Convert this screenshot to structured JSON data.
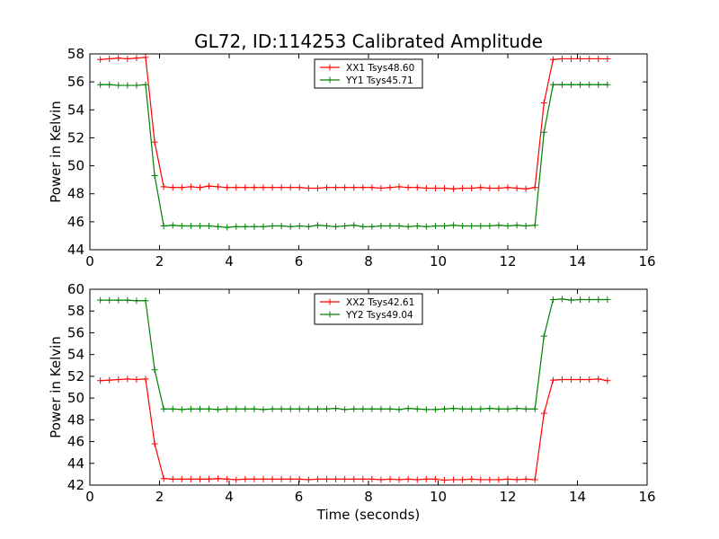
{
  "figure": {
    "title": "GL72, ID:114253 Calibrated Amplitude",
    "xlabel": "Time (seconds)"
  },
  "chart_data": [
    {
      "type": "line",
      "title": "GL72, ID:114253 Calibrated Amplitude",
      "xlabel": "",
      "ylabel": "Power in Kelvin",
      "xlim": [
        0,
        16
      ],
      "ylim": [
        44,
        58
      ],
      "xticks": [
        "0",
        "2",
        "4",
        "6",
        "8",
        "10",
        "12",
        "14",
        "16"
      ],
      "yticks": [
        "44",
        "46",
        "48",
        "50",
        "52",
        "54",
        "56",
        "58"
      ],
      "grid": false,
      "legend_position": "top-center",
      "x": [
        0.3,
        0.56,
        0.82,
        1.08,
        1.34,
        1.6,
        1.86,
        2.12,
        2.38,
        2.64,
        2.9,
        3.16,
        3.42,
        3.68,
        3.94,
        4.2,
        4.46,
        4.72,
        4.98,
        5.24,
        5.5,
        5.76,
        6.02,
        6.28,
        6.54,
        6.8,
        7.06,
        7.32,
        7.58,
        7.84,
        8.1,
        8.36,
        8.62,
        8.88,
        9.14,
        9.4,
        9.66,
        9.92,
        10.18,
        10.44,
        10.7,
        10.96,
        11.22,
        11.48,
        11.74,
        12.0,
        12.26,
        12.52,
        12.78,
        13.04,
        13.3,
        13.56,
        13.82,
        14.08,
        14.34,
        14.6,
        14.86
      ],
      "series": [
        {
          "name": "XX1 Tsys48.60",
          "color": "#ff0000",
          "values": [
            57.6,
            57.65,
            57.7,
            57.65,
            57.7,
            57.75,
            51.7,
            48.5,
            48.45,
            48.45,
            48.5,
            48.45,
            48.55,
            48.5,
            48.45,
            48.45,
            48.45,
            48.45,
            48.45,
            48.45,
            48.45,
            48.45,
            48.45,
            48.4,
            48.4,
            48.45,
            48.45,
            48.45,
            48.45,
            48.45,
            48.45,
            48.4,
            48.45,
            48.5,
            48.45,
            48.45,
            48.4,
            48.4,
            48.4,
            48.35,
            48.4,
            48.4,
            48.45,
            48.4,
            48.4,
            48.45,
            48.4,
            48.35,
            48.45,
            54.5,
            57.6,
            57.65,
            57.65,
            57.65,
            57.65,
            57.65,
            57.65
          ]
        },
        {
          "name": "YY1 Tsys45.71",
          "color": "#008000",
          "values": [
            55.8,
            55.8,
            55.75,
            55.75,
            55.75,
            55.8,
            49.3,
            45.7,
            45.75,
            45.7,
            45.7,
            45.7,
            45.7,
            45.65,
            45.6,
            45.65,
            45.65,
            45.65,
            45.65,
            45.7,
            45.7,
            45.65,
            45.7,
            45.65,
            45.75,
            45.7,
            45.65,
            45.7,
            45.75,
            45.65,
            45.65,
            45.7,
            45.7,
            45.7,
            45.65,
            45.7,
            45.65,
            45.7,
            45.7,
            45.75,
            45.7,
            45.7,
            45.7,
            45.7,
            45.75,
            45.7,
            45.75,
            45.7,
            45.75,
            52.4,
            55.8,
            55.8,
            55.8,
            55.8,
            55.8,
            55.8,
            55.8
          ]
        }
      ]
    },
    {
      "type": "line",
      "title": "",
      "xlabel": "Time (seconds)",
      "ylabel": "Power in Kelvin",
      "xlim": [
        0,
        16
      ],
      "ylim": [
        42,
        60
      ],
      "xticks": [
        "0",
        "2",
        "4",
        "6",
        "8",
        "10",
        "12",
        "14",
        "16"
      ],
      "yticks": [
        "42",
        "44",
        "46",
        "48",
        "50",
        "52",
        "54",
        "56",
        "58",
        "60"
      ],
      "grid": false,
      "legend_position": "top-center",
      "x": [
        0.3,
        0.56,
        0.82,
        1.08,
        1.34,
        1.6,
        1.86,
        2.12,
        2.38,
        2.64,
        2.9,
        3.16,
        3.42,
        3.68,
        3.94,
        4.2,
        4.46,
        4.72,
        4.98,
        5.24,
        5.5,
        5.76,
        6.02,
        6.28,
        6.54,
        6.8,
        7.06,
        7.32,
        7.58,
        7.84,
        8.1,
        8.36,
        8.62,
        8.88,
        9.14,
        9.4,
        9.66,
        9.92,
        10.18,
        10.44,
        10.7,
        10.96,
        11.22,
        11.48,
        11.74,
        12.0,
        12.26,
        12.52,
        12.78,
        13.04,
        13.3,
        13.56,
        13.82,
        14.08,
        14.34,
        14.6,
        14.86
      ],
      "series": [
        {
          "name": "XX2 Tsys42.61",
          "color": "#ff0000",
          "values": [
            51.6,
            51.65,
            51.7,
            51.75,
            51.7,
            51.75,
            45.8,
            42.6,
            42.55,
            42.55,
            42.55,
            42.55,
            42.55,
            42.6,
            42.55,
            42.5,
            42.55,
            42.55,
            42.55,
            42.55,
            42.55,
            42.55,
            42.55,
            42.5,
            42.55,
            42.55,
            42.55,
            42.55,
            42.55,
            42.55,
            42.55,
            42.5,
            42.55,
            42.5,
            42.55,
            42.5,
            42.55,
            42.55,
            42.45,
            42.5,
            42.5,
            42.55,
            42.5,
            42.5,
            42.5,
            42.55,
            42.5,
            42.55,
            42.5,
            48.6,
            51.65,
            51.7,
            51.7,
            51.7,
            51.7,
            51.75,
            51.6
          ]
        },
        {
          "name": "YY2 Tsys49.04",
          "color": "#008000",
          "values": [
            59.0,
            59.0,
            59.0,
            59.0,
            58.95,
            58.95,
            52.6,
            49.0,
            49.0,
            48.95,
            49.0,
            49.0,
            49.0,
            48.95,
            49.0,
            49.0,
            49.0,
            49.0,
            48.95,
            49.0,
            49.0,
            49.0,
            49.0,
            49.0,
            49.0,
            49.0,
            49.05,
            48.95,
            49.0,
            49.0,
            49.0,
            49.0,
            49.0,
            48.95,
            49.05,
            49.0,
            48.95,
            48.95,
            49.0,
            49.05,
            49.0,
            49.0,
            49.0,
            49.05,
            49.0,
            49.0,
            49.05,
            49.0,
            49.0,
            55.7,
            59.05,
            59.1,
            59.0,
            59.05,
            59.05,
            59.05,
            59.05
          ]
        }
      ]
    }
  ]
}
